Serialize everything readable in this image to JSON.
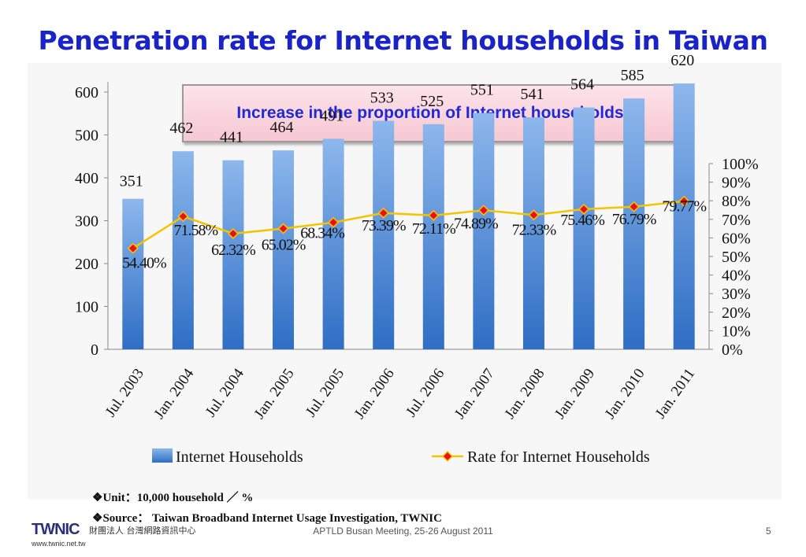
{
  "page": {
    "title": "Penetration rate for Internet households in Taiwan",
    "banner": "Increase in the proportion of Internet households",
    "notes": [
      "❖Unit：10,000 household ／ %",
      "❖Source： Taiwan Broadband Internet Usage Investigation, TWNIC"
    ],
    "footer": "APTLD Busan Meeting, 25-26 August 2011",
    "page_number": "5",
    "logo": {
      "name": "TWNIC",
      "chinese": "財團法人 台灣網路資訊中心",
      "url": "www.twnic.net.tw"
    }
  },
  "chart_data": {
    "type": "bar",
    "categories": [
      "Jul. 2003",
      "Jan. 2004",
      "Jul. 2004",
      "Jan. 2005",
      "Jul. 2005",
      "Jan. 2006",
      "Jul. 2006",
      "Jan. 2007",
      "Jan. 2008",
      "Jan. 2009",
      "Jan. 2010",
      "Jan. 2011"
    ],
    "series": [
      {
        "name": "Internet Households",
        "type": "bar",
        "axis": "left",
        "values": [
          351,
          462,
          441,
          464,
          491,
          533,
          525,
          551,
          541,
          564,
          585,
          620
        ],
        "labels": [
          "351",
          "462",
          "441",
          "464",
          "491",
          "533",
          "525",
          "551",
          "541",
          "564",
          "585",
          "620"
        ]
      },
      {
        "name": "Rate for Internet Households",
        "type": "line",
        "axis": "right",
        "values": [
          54.4,
          71.58,
          62.32,
          65.02,
          68.34,
          73.39,
          72.11,
          74.89,
          72.33,
          75.46,
          76.79,
          79.77
        ],
        "labels": [
          "54.40%",
          "71.58%",
          "62.32%",
          "65.02%",
          "68.34%",
          "73.39%",
          "72.11%",
          "74.89%",
          "72.33%",
          "75.46%",
          "76.79%",
          "79.77%"
        ]
      }
    ],
    "y_left": {
      "min": 0,
      "max": 660,
      "ticks": [
        "0",
        "100",
        "200",
        "300",
        "400",
        "500",
        "600"
      ]
    },
    "y_right": {
      "min": 0,
      "max": 100,
      "ticks": [
        "0%",
        "10%",
        "20%",
        "30%",
        "40%",
        "50%",
        "60%",
        "70%",
        "80%",
        "90%",
        "100%"
      ]
    },
    "legend_position": "bottom",
    "colors": {
      "bar_top": "#8db7ec",
      "bar_bottom": "#2f6ec4",
      "line": "#f5c400",
      "marker": "#e8101a",
      "text": "#111111"
    }
  }
}
